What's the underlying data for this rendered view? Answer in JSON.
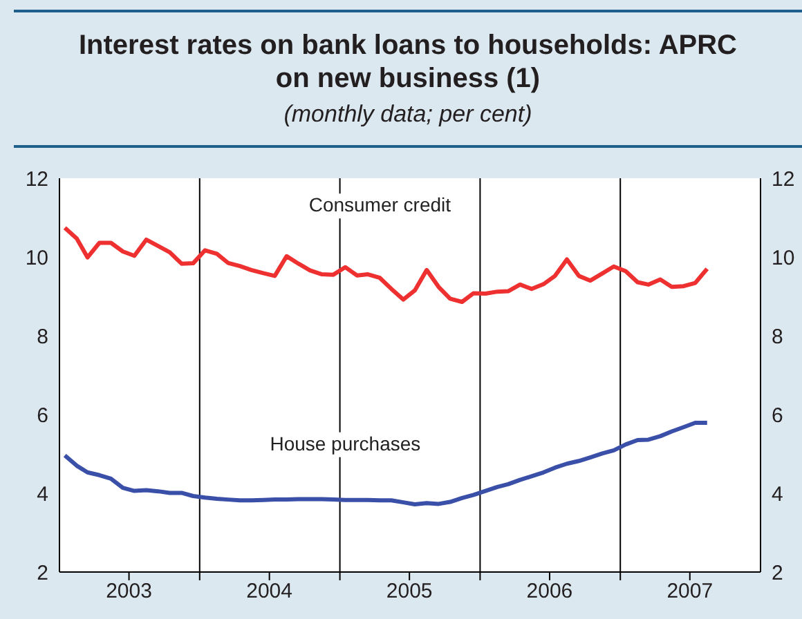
{
  "chart_data": {
    "type": "line",
    "title": "Interest rates on bank loans to households: APRC on new business (1)",
    "subtitle": "(monthly data; per cent)",
    "x": [
      "2003-01-15",
      "2003-02-15",
      "2003-03-15",
      "2003-04-15",
      "2003-05-15",
      "2003-06-15",
      "2003-07-15",
      "2003-08-15",
      "2003-09-15",
      "2003-10-15",
      "2003-11-15",
      "2003-12-15",
      "2004-01-15",
      "2004-02-15",
      "2004-03-15",
      "2004-04-15",
      "2004-05-15",
      "2004-06-15",
      "2004-07-15",
      "2004-08-15",
      "2004-09-15",
      "2004-10-15",
      "2004-11-15",
      "2004-12-15",
      "2005-01-15",
      "2005-02-15",
      "2005-03-15",
      "2005-04-15",
      "2005-05-15",
      "2005-06-15",
      "2005-07-15",
      "2005-08-15",
      "2005-09-15",
      "2005-10-15",
      "2005-11-15",
      "2005-12-15",
      "2006-01-15",
      "2006-02-15",
      "2006-03-15",
      "2006-04-15",
      "2006-05-15",
      "2006-06-15",
      "2006-07-15",
      "2006-08-15",
      "2006-09-15",
      "2006-10-15",
      "2006-11-15",
      "2006-12-15",
      "2007-01-15",
      "2007-02-15",
      "2007-03-15",
      "2007-04-15",
      "2007-05-15",
      "2007-06-15",
      "2007-07-15",
      "2007-08-15"
    ],
    "series": [
      {
        "name": "Consumer credit",
        "color": "#ee3030",
        "values": [
          10.74,
          10.47,
          9.99,
          10.36,
          10.36,
          10.14,
          10.03,
          10.44,
          10.28,
          10.12,
          9.83,
          9.84,
          10.17,
          10.08,
          9.85,
          9.77,
          9.67,
          9.59,
          9.52,
          10.02,
          9.83,
          9.66,
          9.56,
          9.55,
          9.74,
          9.53,
          9.56,
          9.47,
          9.19,
          8.92,
          9.15,
          9.67,
          9.24,
          8.94,
          8.86,
          9.08,
          9.07,
          9.12,
          9.13,
          9.3,
          9.19,
          9.31,
          9.52,
          9.94,
          9.52,
          9.4,
          9.58,
          9.76,
          9.64,
          9.36,
          9.3,
          9.43,
          9.24,
          9.26,
          9.34,
          9.7
        ]
      },
      {
        "name": "House purchases",
        "color": "#3a4fa8",
        "values": [
          4.96,
          4.7,
          4.53,
          4.46,
          4.37,
          4.14,
          4.06,
          4.08,
          4.05,
          4.01,
          4.01,
          3.93,
          3.89,
          3.86,
          3.84,
          3.82,
          3.82,
          3.83,
          3.84,
          3.84,
          3.85,
          3.85,
          3.85,
          3.84,
          3.83,
          3.83,
          3.83,
          3.82,
          3.82,
          3.77,
          3.72,
          3.75,
          3.73,
          3.78,
          3.88,
          3.96,
          4.06,
          4.16,
          4.23,
          4.34,
          4.43,
          4.53,
          4.65,
          4.75,
          4.82,
          4.91,
          5.01,
          5.09,
          5.24,
          5.35,
          5.36,
          5.45,
          5.57,
          5.68,
          5.79,
          5.79
        ]
      }
    ],
    "xlim": [
      "2003-01-01",
      "2008-01-01"
    ],
    "xticks": [
      {
        "value": "2003-07-01",
        "label": "2003"
      },
      {
        "value": "2004-01-01",
        "label": null
      },
      {
        "value": "2004-07-01",
        "label": "2004"
      },
      {
        "value": "2005-01-01",
        "label": null
      },
      {
        "value": "2005-07-01",
        "label": "2005"
      },
      {
        "value": "2006-01-01",
        "label": null
      },
      {
        "value": "2006-07-01",
        "label": "2006"
      },
      {
        "value": "2007-01-01",
        "label": null
      },
      {
        "value": "2007-07-01",
        "label": "2007"
      }
    ],
    "ylim": [
      2,
      12
    ],
    "yticks": [
      2,
      4,
      6,
      8,
      10,
      12
    ],
    "y2lim": [
      2,
      12
    ],
    "y2ticks": [
      2,
      4,
      6,
      8,
      10,
      12
    ],
    "grid": true,
    "legend": false,
    "marker": "none",
    "line_style": "solid"
  }
}
